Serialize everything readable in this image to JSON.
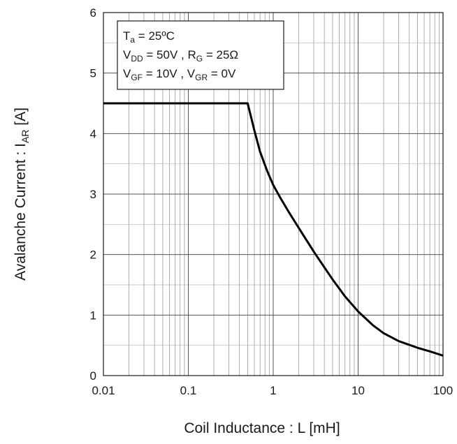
{
  "chart_data": {
    "type": "line",
    "xlabel": "Coil Inductance : L [mH]",
    "ylabel": {
      "prefix": "Avalanche Current : I",
      "sub": "AR",
      "suffix": " [A]"
    },
    "x_scale": "log",
    "xlim": [
      0.01,
      100
    ],
    "ylim": [
      0,
      6
    ],
    "x_ticks": [
      "0.01",
      "0.1",
      "1",
      "10",
      "100"
    ],
    "y_ticks": [
      "0",
      "1",
      "2",
      "3",
      "4",
      "5",
      "6"
    ],
    "grid": true,
    "annotation": [
      {
        "parts": [
          {
            "t": "T"
          },
          {
            "t": "a",
            "sub": true
          },
          {
            "t": " = 25ºC"
          }
        ]
      },
      {
        "parts": [
          {
            "t": "V"
          },
          {
            "t": "DD",
            "sub": true
          },
          {
            "t": " = 50V , R"
          },
          {
            "t": "G",
            "sub": true
          },
          {
            "t": " = 25Ω"
          }
        ]
      },
      {
        "parts": [
          {
            "t": "V"
          },
          {
            "t": "GF",
            "sub": true
          },
          {
            "t": " = 10V , V"
          },
          {
            "t": "GR",
            "sub": true
          },
          {
            "t": " = 0V"
          }
        ]
      }
    ],
    "series": [
      {
        "color": "#000000",
        "x": [
          0.01,
          0.5,
          0.6,
          0.7,
          0.85,
          1.0,
          1.2,
          1.5,
          2,
          3,
          4,
          5,
          7,
          10,
          15,
          20,
          30,
          50,
          70,
          100
        ],
        "y": [
          4.5,
          4.5,
          4.05,
          3.7,
          3.38,
          3.15,
          2.95,
          2.72,
          2.44,
          2.05,
          1.79,
          1.59,
          1.31,
          1.06,
          0.83,
          0.7,
          0.57,
          0.46,
          0.4,
          0.33
        ]
      }
    ]
  }
}
